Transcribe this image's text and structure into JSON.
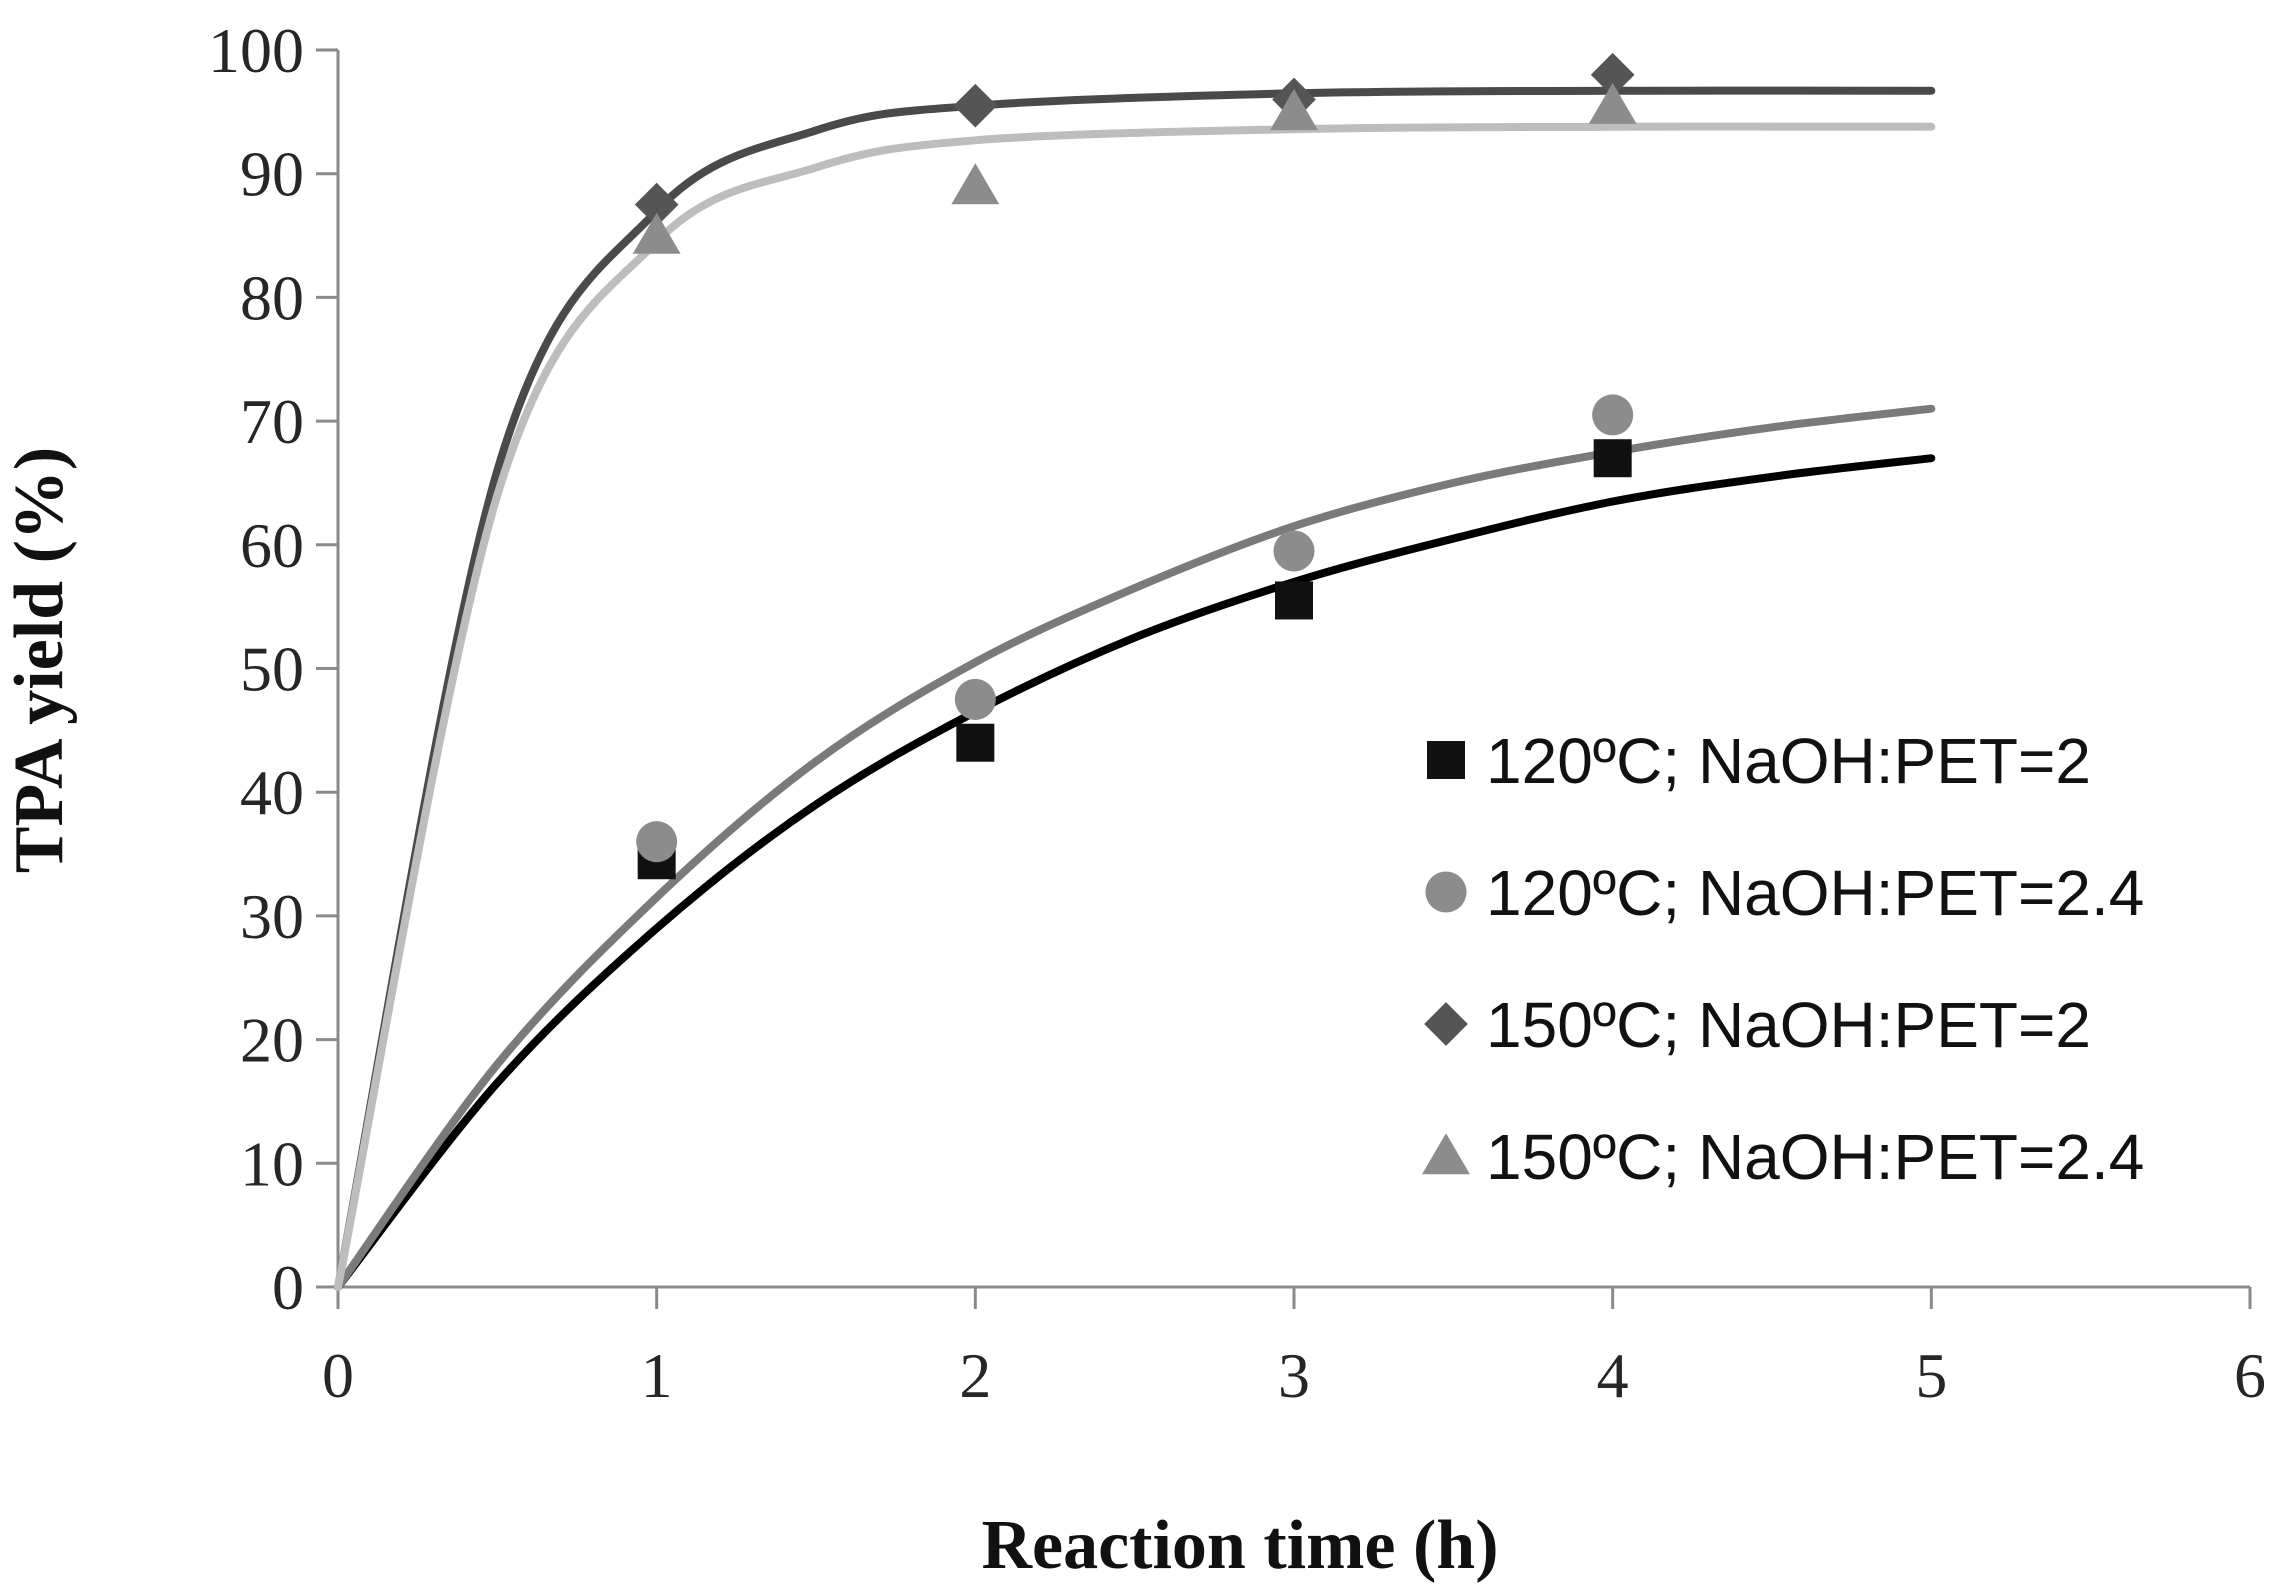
{
  "chart_data": {
    "type": "scatter",
    "title": "",
    "xlabel": "Reaction time (h)",
    "ylabel": "TPA yield (%)",
    "xlim": [
      0,
      6
    ],
    "ylim": [
      0,
      100
    ],
    "xticks": [
      "0",
      "1",
      "2",
      "3",
      "4",
      "5",
      "6"
    ],
    "yticks": [
      "0",
      "10",
      "20",
      "30",
      "40",
      "50",
      "60",
      "70",
      "80",
      "90",
      "100"
    ],
    "grid": false,
    "legend_position": "right",
    "series": [
      {
        "name": "120ºC; NaOH:PET=2",
        "marker": "square",
        "marker_color": "#111111",
        "line_color": "#000000",
        "points": [
          {
            "x": 1,
            "y": 34.5
          },
          {
            "x": 2,
            "y": 44
          },
          {
            "x": 3,
            "y": 55.5
          },
          {
            "x": 4,
            "y": 67
          }
        ],
        "fit": [
          {
            "x": 0,
            "y": 0
          },
          {
            "x": 0.5,
            "y": 16.5
          },
          {
            "x": 1,
            "y": 29
          },
          {
            "x": 1.5,
            "y": 39
          },
          {
            "x": 2,
            "y": 46.5
          },
          {
            "x": 2.5,
            "y": 52.5
          },
          {
            "x": 3,
            "y": 57
          },
          {
            "x": 3.5,
            "y": 60.5
          },
          {
            "x": 4,
            "y": 63.5
          },
          {
            "x": 4.5,
            "y": 65.5
          },
          {
            "x": 5,
            "y": 67
          }
        ]
      },
      {
        "name": "120ºC; NaOH:PET=2.4",
        "marker": "circle",
        "marker_color": "#8c8c8c",
        "line_color": "#7a7a7a",
        "points": [
          {
            "x": 1,
            "y": 36
          },
          {
            "x": 2,
            "y": 47.5
          },
          {
            "x": 3,
            "y": 59.5
          },
          {
            "x": 4,
            "y": 70.5
          }
        ],
        "fit": [
          {
            "x": 0,
            "y": 0
          },
          {
            "x": 0.5,
            "y": 18
          },
          {
            "x": 1,
            "y": 31.5
          },
          {
            "x": 1.5,
            "y": 42.5
          },
          {
            "x": 2,
            "y": 50.5
          },
          {
            "x": 2.5,
            "y": 56.5
          },
          {
            "x": 3,
            "y": 61.5
          },
          {
            "x": 3.5,
            "y": 65
          },
          {
            "x": 4,
            "y": 67.5
          },
          {
            "x": 4.5,
            "y": 69.5
          },
          {
            "x": 5,
            "y": 71
          }
        ]
      },
      {
        "name": "150ºC; NaOH:PET=2",
        "marker": "diamond",
        "marker_color": "#555555",
        "line_color": "#4a4a4a",
        "points": [
          {
            "x": 1,
            "y": 87.5
          },
          {
            "x": 2,
            "y": 95.5
          },
          {
            "x": 3,
            "y": 96
          },
          {
            "x": 4,
            "y": 98
          }
        ],
        "fit": [
          {
            "x": 0,
            "y": 0
          },
          {
            "x": 0.5,
            "y": 66
          },
          {
            "x": 1,
            "y": 87
          },
          {
            "x": 1.5,
            "y": 93.5
          },
          {
            "x": 2,
            "y": 95.5
          },
          {
            "x": 3,
            "y": 96.5
          },
          {
            "x": 4,
            "y": 96.7
          },
          {
            "x": 5,
            "y": 96.7
          }
        ]
      },
      {
        "name": "150ºC; NaOH:PET=2.4",
        "marker": "triangle",
        "marker_color": "#8c8c8c",
        "line_color": "#bdbdbd",
        "points": [
          {
            "x": 1,
            "y": 85
          },
          {
            "x": 2,
            "y": 89
          },
          {
            "x": 3,
            "y": 95
          },
          {
            "x": 4,
            "y": 95.5
          }
        ],
        "fit": [
          {
            "x": 0,
            "y": 0
          },
          {
            "x": 0.5,
            "y": 64
          },
          {
            "x": 1,
            "y": 84.5
          },
          {
            "x": 1.5,
            "y": 90.5
          },
          {
            "x": 2,
            "y": 92.7
          },
          {
            "x": 3,
            "y": 93.6
          },
          {
            "x": 4,
            "y": 93.8
          },
          {
            "x": 5,
            "y": 93.8
          }
        ]
      }
    ]
  }
}
